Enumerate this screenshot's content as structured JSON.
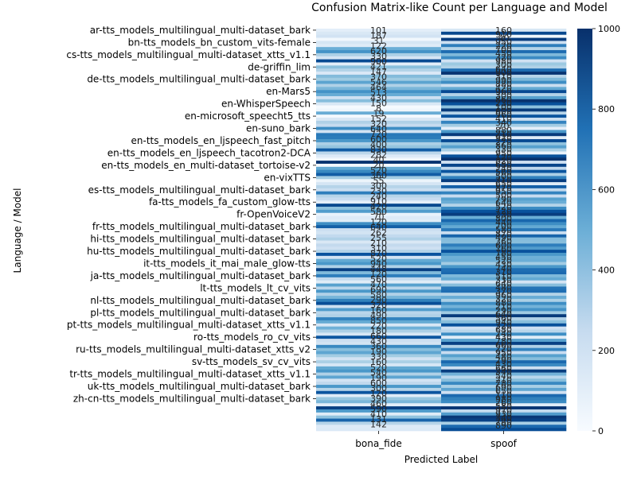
{
  "chart_data": {
    "type": "heatmap",
    "title": "Confusion Matrix-like Count per Language and Model",
    "xlabel": "Predicted Label",
    "ylabel": "Language / Model",
    "columns": [
      "bona_fide",
      "spoof"
    ],
    "row_labels_shown": [
      "ar-tts_models_multilingual_multi-dataset_bark",
      "bn-tts_models_bn_custom_vits-female",
      "cs-tts_models_multilingual_multi-dataset_xtts_v1.1",
      "de-griffin_lim",
      "de-tts_models_multilingual_multi-dataset_bark",
      "en-Mars5",
      "en-WhisperSpeech",
      "en-microsoft_speecht5_tts",
      "en-suno_bark",
      "en-tts_models_en_ljspeech_fast_pitch",
      "en-tts_models_en_ljspeech_tacotron2-DCA",
      "en-tts_models_en_multi-dataset_tortoise-v2",
      "en-vixTTS",
      "es-tts_models_multilingual_multi-dataset_bark",
      "fa-tts_models_fa_custom_glow-tts",
      "fr-OpenVoiceV2",
      "fr-tts_models_multilingual_multi-dataset_bark",
      "hi-tts_models_multilingual_multi-dataset_bark",
      "hu-tts_models_multilingual_multi-dataset_bark",
      "it-tts_models_it_mai_male_glow-tts",
      "ja-tts_models_multilingual_multi-dataset_bark",
      "lt-tts_models_lt_cv_vits",
      "nl-tts_models_multilingual_multi-dataset_bark",
      "pl-tts_models_multilingual_multi-dataset_bark",
      "pt-tts_models_multilingual_multi-dataset_xtts_v1.1",
      "ro-tts_models_ro_cv_vits",
      "ru-tts_models_multilingual_multi-dataset_xtts_v2",
      "sv-tts_models_sv_cv_vits",
      "tr-tts_models_multilingual_multi-dataset_xtts_v1.1",
      "uk-tts_models_multilingual_multi-dataset_bark",
      "zh-cn-tts_models_multilingual_multi-dataset_bark"
    ],
    "label_every": 4,
    "bona_fide": [
      101,
      150,
      187,
      31,
      167,
      122,
      500,
      620,
      330,
      170,
      900,
      100,
      421,
      310,
      147,
      440,
      370,
      546,
      320,
      464,
      620,
      513,
      210,
      430,
      150,
      8,
      40,
      510,
      19,
      152,
      320,
      250,
      640,
      190,
      720,
      710,
      600,
      330,
      400,
      830,
      282,
      130,
      40,
      990,
      20,
      520,
      660,
      830,
      360,
      55,
      170,
      300,
      230,
      700,
      300,
      240,
      100,
      910,
      420,
      580,
      70,
      130,
      120,
      640,
      820,
      220,
      180,
      262,
      320,
      150,
      255,
      210,
      310,
      870,
      180,
      520,
      600,
      320,
      940,
      448,
      700,
      260,
      120,
      560,
      290,
      600,
      320,
      470,
      690,
      890,
      220,
      580,
      290,
      320,
      680,
      520,
      160,
      490,
      330,
      160,
      850,
      220,
      180,
      660,
      430,
      540,
      360,
      190,
      330,
      160,
      520,
      600,
      320,
      540,
      190,
      270,
      600,
      300,
      860,
      120,
      390,
      460,
      100,
      940,
      590,
      120,
      410,
      800,
      300,
      131,
      142
    ],
    "spoof": [
      160,
      910,
      40,
      950,
      220,
      700,
      300,
      770,
      450,
      650,
      200,
      380,
      320,
      770,
      980,
      300,
      450,
      640,
      230,
      520,
      900,
      310,
      560,
      990,
      880,
      420,
      960,
      300,
      860,
      230,
      680,
      360,
      100,
      600,
      960,
      120,
      900,
      410,
      560,
      340,
      70,
      880,
      990,
      210,
      920,
      270,
      860,
      330,
      690,
      950,
      120,
      820,
      270,
      680,
      240,
      560,
      500,
      310,
      650,
      870,
      950,
      500,
      790,
      640,
      520,
      720,
      230,
      800,
      440,
      430,
      700,
      580,
      870,
      600,
      490,
      500,
      360,
      600,
      760,
      780,
      450,
      520,
      180,
      430,
      740,
      760,
      310,
      510,
      330,
      640,
      480,
      620,
      370,
      960,
      320,
      430,
      880,
      210,
      290,
      640,
      120,
      560,
      940,
      320,
      680,
      240,
      560,
      430,
      780,
      660,
      220,
      950,
      480,
      290,
      430,
      660,
      340,
      540,
      210,
      780,
      690,
      650,
      110,
      980,
      260,
      580,
      970,
      930,
      340,
      780,
      890
    ],
    "cell_labels": {
      "bona_fide": [
        "101",
        "187",
        "31",
        "122",
        "620",
        "330",
        "900",
        "421",
        "147",
        "370",
        "546",
        "464",
        "513",
        "430",
        "150",
        "8",
        "19",
        "152",
        "320",
        "640",
        "720",
        "600",
        "400",
        "830",
        "282",
        "40",
        "20",
        "520",
        "360",
        "55",
        "300",
        "230",
        "240",
        "910",
        "420",
        "580",
        "70",
        "120",
        "640",
        "262",
        "255",
        "210",
        "310",
        "870",
        "520",
        "940",
        "448",
        "120",
        "560",
        "470",
        "690",
        "580",
        "290",
        "320",
        "160",
        "490",
        "850",
        "220",
        "180",
        "660",
        "430",
        "360",
        "190",
        "330",
        "160",
        "520",
        "540",
        "190",
        "600",
        "300",
        "120",
        "390",
        "460",
        "590",
        "410",
        "131",
        "142"
      ],
      "spoof": [
        "160",
        "910",
        "40",
        "950",
        "220",
        "700",
        "450",
        "320",
        "980",
        "300",
        "640",
        "900",
        "310",
        "990",
        "880",
        "420",
        "960",
        "300",
        "860",
        "230",
        "100",
        "600",
        "960",
        "410",
        "340",
        "70",
        "880",
        "210",
        "920",
        "270",
        "860",
        "330",
        "950",
        "120",
        "820",
        "680",
        "240",
        "560",
        "500",
        "310",
        "650",
        "870",
        "950",
        "500",
        "790",
        "640",
        "520",
        "720",
        "230",
        "800",
        "440",
        "700",
        "580",
        "870",
        "490",
        "360",
        "600",
        "760",
        "780",
        "450",
        "520",
        "430",
        "740",
        "310",
        "510",
        "330",
        "640",
        "480",
        "370",
        "960",
        "320",
        "880",
        "210",
        "290",
        "640",
        "560",
        "940",
        "320",
        "680",
        "240",
        "430",
        "780",
        "660",
        "220",
        "950",
        "480",
        "290",
        "430",
        "660",
        "340",
        "540",
        "210",
        "780",
        "690",
        "650",
        "110",
        "980",
        "260",
        "580",
        "970",
        "930",
        "340",
        "780",
        "890"
      ]
    },
    "colorbar": {
      "min": 0,
      "max": 1000,
      "ticks": [
        0,
        200,
        400,
        600,
        800,
        1000
      ],
      "colormap": "Blues"
    },
    "colors": {
      "low": "#f7fbff",
      "mid": "#6baed6",
      "high": "#08306b"
    }
  }
}
